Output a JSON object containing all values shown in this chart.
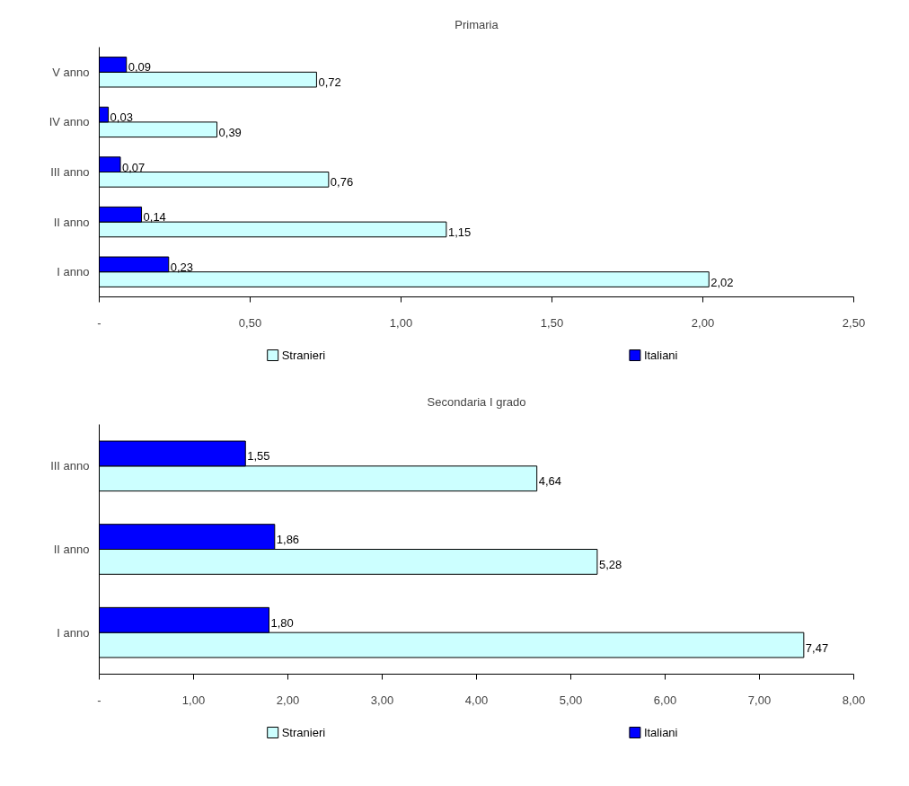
{
  "chart_data": [
    {
      "type": "bar",
      "title": "Primaria",
      "orientation": "horizontal",
      "categories": [
        "V anno",
        "IV anno",
        "III anno",
        "II anno",
        "I anno"
      ],
      "series": [
        {
          "name": "Stranieri",
          "color": "#ccffff",
          "values": [
            0.72,
            0.39,
            0.76,
            1.15,
            2.02
          ],
          "value_labels": [
            "0,72",
            "0,39",
            "0,76",
            "1,15",
            "2,02"
          ]
        },
        {
          "name": "Italiani",
          "color": "#0000ff",
          "values": [
            0.09,
            0.03,
            0.07,
            0.14,
            0.23
          ],
          "value_labels": [
            "0,09",
            "0,03",
            "0,07",
            "0,14",
            "0,23"
          ]
        }
      ],
      "xlim": [
        0,
        2.5
      ],
      "xticks": [
        {
          "value": 0,
          "label": "-"
        },
        {
          "value": 0.5,
          "label": "0,50"
        },
        {
          "value": 1,
          "label": "1,00"
        },
        {
          "value": 1.5,
          "label": "1,50"
        },
        {
          "value": 2,
          "label": "2,00"
        },
        {
          "value": 2.5,
          "label": "2,50"
        }
      ],
      "grid": false,
      "legend": "bottom"
    },
    {
      "type": "bar",
      "title": "Secondaria I grado",
      "orientation": "horizontal",
      "categories": [
        "III anno",
        "II anno",
        "I anno"
      ],
      "series": [
        {
          "name": "Stranieri",
          "color": "#ccffff",
          "values": [
            4.64,
            5.28,
            7.47
          ],
          "value_labels": [
            "4,64",
            "5,28",
            "7,47"
          ]
        },
        {
          "name": "Italiani",
          "color": "#0000ff",
          "values": [
            1.55,
            1.86,
            1.8
          ],
          "value_labels": [
            "1,55",
            "1,86",
            "1,80"
          ]
        }
      ],
      "xlim": [
        0,
        8
      ],
      "xticks": [
        {
          "value": 0,
          "label": "-"
        },
        {
          "value": 1,
          "label": "1,00"
        },
        {
          "value": 2,
          "label": "2,00"
        },
        {
          "value": 3,
          "label": "3,00"
        },
        {
          "value": 4,
          "label": "4,00"
        },
        {
          "value": 5,
          "label": "5,00"
        },
        {
          "value": 6,
          "label": "6,00"
        },
        {
          "value": 7,
          "label": "7,00"
        },
        {
          "value": 8,
          "label": "8,00"
        }
      ],
      "grid": false,
      "legend": "bottom"
    }
  ]
}
